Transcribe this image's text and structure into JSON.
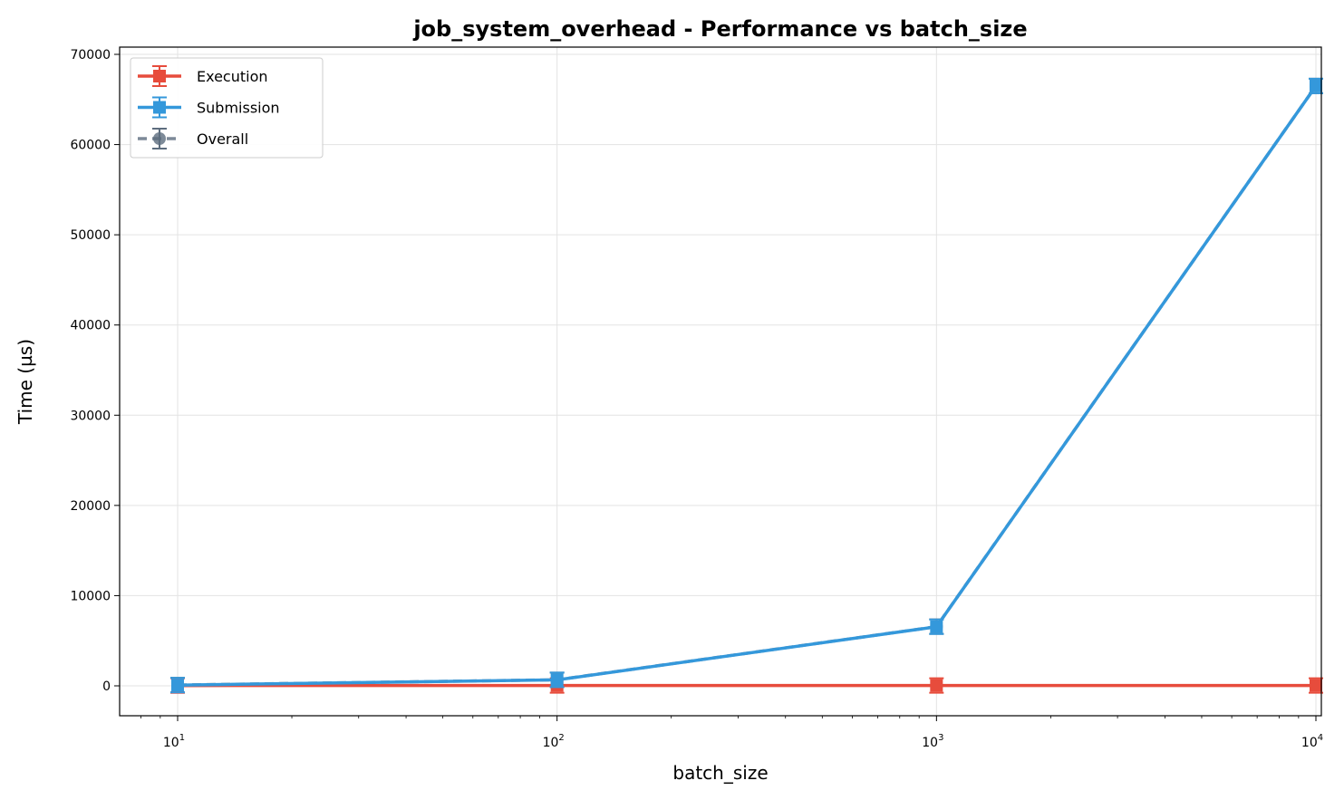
{
  "chart_data": {
    "type": "line",
    "title": "job_system_overhead - Performance vs batch_size",
    "xlabel": "batch_size",
    "ylabel": "Time (µs)",
    "x_scale": "log",
    "x": [
      10,
      100,
      1000,
      10000
    ],
    "x_tick_labels": [
      {
        "base": "10",
        "exp": "1"
      },
      {
        "base": "10",
        "exp": "2"
      },
      {
        "base": "10",
        "exp": "3"
      },
      {
        "base": "10",
        "exp": "4"
      }
    ],
    "ylim": [
      -3400,
      70000
    ],
    "y_ticks": [
      0,
      10000,
      20000,
      30000,
      40000,
      50000,
      60000,
      70000
    ],
    "grid": true,
    "legend_position": "top-left",
    "series": [
      {
        "name": "Execution",
        "color": "#e74c3c",
        "marker": "square",
        "linestyle": "solid",
        "values": [
          30,
          40,
          40,
          40
        ]
      },
      {
        "name": "Submission",
        "color": "#3498db",
        "marker": "square",
        "linestyle": "solid",
        "values": [
          80,
          660,
          6550,
          66500
        ]
      },
      {
        "name": "Overall",
        "color": "#5d6d7e",
        "marker": "circle",
        "linestyle": "dashed",
        "values": [
          90,
          670,
          6560,
          66500
        ]
      }
    ]
  }
}
